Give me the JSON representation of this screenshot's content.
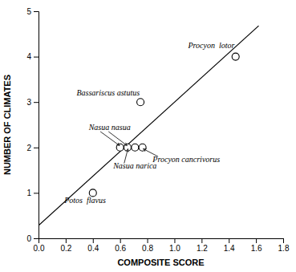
{
  "chart_data": {
    "type": "scatter",
    "xlabel": "COMPOSITE SCORE",
    "ylabel": "NUMBER OF CLIMATES",
    "series": [
      {
        "type": "scatter",
        "marker": "circle",
        "color": "black",
        "x": [
          0.4,
          0.75,
          0.6,
          0.655,
          0.71,
          0.765,
          1.45
        ],
        "values": [
          1,
          3,
          2,
          2,
          2,
          2,
          4
        ]
      },
      {
        "type": "line",
        "color": "black",
        "x": [
          0.0,
          1.62
        ],
        "values": [
          0.28,
          4.68
        ]
      }
    ],
    "annotations": [
      {
        "text": "Nasua nasua",
        "x": 0.37,
        "y": 2.42,
        "arrows": [
          {
            "x0": 0.455,
            "y0": 2.35,
            "x1": 0.597,
            "y1": 2.04
          },
          {
            "x0": 0.515,
            "y0": 2.35,
            "x1": 0.652,
            "y1": 2.04
          }
        ]
      },
      {
        "text": "Nasua narica",
        "x": 0.55,
        "y": 1.58,
        "arrows": [
          {
            "x0": 0.63,
            "y0": 1.65,
            "x1": 0.658,
            "y1": 1.97
          }
        ]
      },
      {
        "text": "Procyon cancrivorus",
        "x": 0.84,
        "y": 1.72,
        "arrows": [
          {
            "x0": 0.88,
            "y0": 1.8,
            "x1": 0.77,
            "y1": 1.97
          }
        ]
      },
      {
        "text": "Potos  flavus",
        "x": 0.19,
        "y": 0.82
      },
      {
        "text": "Bassariscus astutus",
        "x": 0.28,
        "y": 3.18
      },
      {
        "text": "Procyon  lotor",
        "x": 1.1,
        "y": 4.22
      }
    ],
    "xlim": [
      0,
      1.8
    ],
    "ylim": [
      0,
      5
    ],
    "xticks": [
      {
        "value": 0,
        "label": "0.0"
      },
      0.2,
      0.4,
      0.6,
      0.8,
      {
        "value": 1,
        "label": "1.0"
      },
      1.2,
      1.4,
      1.6,
      1.8
    ],
    "yticks": [
      0,
      1,
      2,
      3,
      4,
      5
    ],
    "grid": false
  }
}
